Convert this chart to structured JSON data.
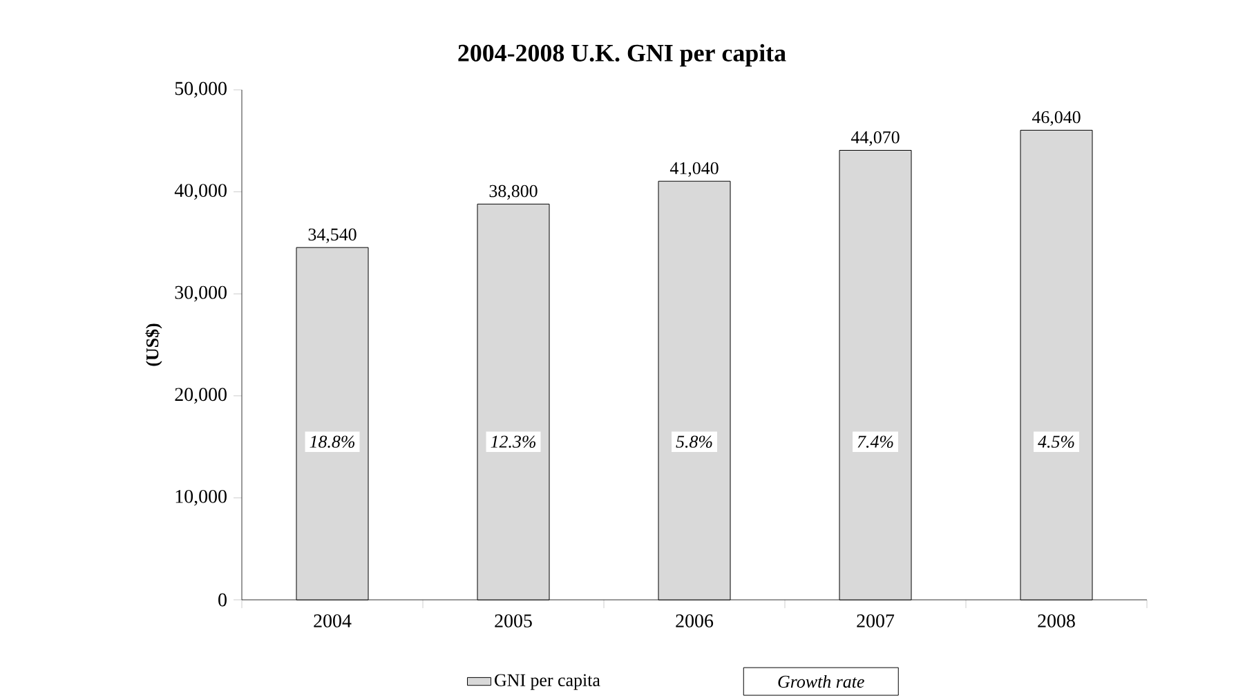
{
  "chart_data": {
    "type": "bar",
    "title": "2004-2008 U.K. GNI per capita",
    "ylabel": "(US$)",
    "categories": [
      "2004",
      "2005",
      "2006",
      "2007",
      "2008"
    ],
    "series": [
      {
        "name": "GNI per capita",
        "color": "#d9d9d9",
        "values": [
          34540,
          38800,
          41040,
          44070,
          46040
        ],
        "value_labels": [
          "34,540",
          "38,800",
          "41,040",
          "44,070",
          "46,040"
        ]
      }
    ],
    "ylim": [
      0,
      50000
    ],
    "yticks": [
      {
        "value": 0,
        "label": "0"
      },
      {
        "value": 10000,
        "label": "10,000"
      },
      {
        "value": 20000,
        "label": "20,000"
      },
      {
        "value": 30000,
        "label": "30,000"
      },
      {
        "value": 40000,
        "label": "40,000"
      },
      {
        "value": 50000,
        "label": "50,000"
      }
    ],
    "legend": "bottom",
    "grid": false,
    "annotations": [
      "Growth rate",
      {
        "text": "18.8%",
        "x": "2004",
        "y": 15500
      },
      {
        "text": "12.3%",
        "x": "2005",
        "y": 15500
      },
      {
        "text": "5.8%",
        "x": "2006",
        "y": 15500
      },
      {
        "text": "7.4%",
        "x": "2007",
        "y": 15500
      },
      {
        "text": "4.5%",
        "x": "2008",
        "y": 15500
      }
    ]
  }
}
